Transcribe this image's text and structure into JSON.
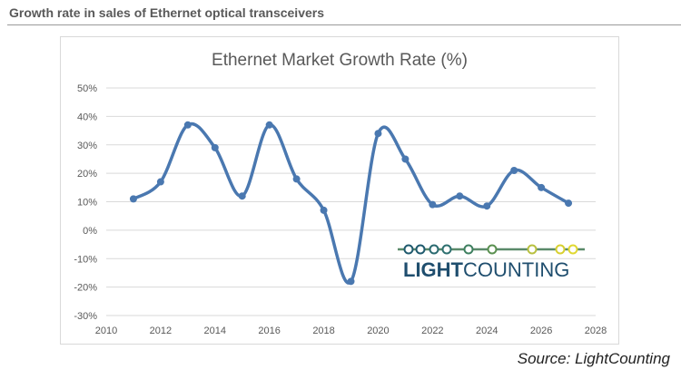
{
  "header": "Growth rate in sales of Ethernet optical transceivers",
  "source": "Source: LightCounting",
  "logo": {
    "text_bold": "LIGHT",
    "text_regular": "COUNTING"
  },
  "chart_data": {
    "type": "line",
    "title": "Ethernet Market Growth Rate (%)",
    "xlabel": "",
    "ylabel": "",
    "x": [
      2011,
      2012,
      2013,
      2014,
      2015,
      2016,
      2017,
      2018,
      2019,
      2020,
      2021,
      2022,
      2023,
      2024,
      2025,
      2026,
      2027
    ],
    "series": [
      {
        "values": [
          11,
          17,
          37,
          29,
          12,
          37,
          18,
          7,
          -18,
          34,
          25,
          9,
          12,
          8.5,
          21,
          15,
          9.5
        ],
        "color": "#4a78b0"
      }
    ],
    "xlim": [
      2010,
      2028
    ],
    "ylim": [
      -30,
      50
    ],
    "xticks": [
      "2010",
      "2012",
      "2014",
      "2016",
      "2018",
      "2020",
      "2022",
      "2024",
      "2026",
      "2028"
    ],
    "yticks": [
      "-30%",
      "-20%",
      "-10%",
      "0%",
      "10%",
      "20%",
      "30%",
      "40%",
      "50%"
    ],
    "grid": true,
    "smooth": true
  }
}
